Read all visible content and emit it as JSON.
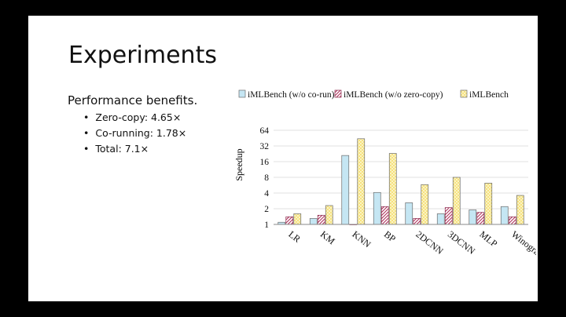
{
  "slide": {
    "title": "Experiments",
    "lead": "Performance benefits.",
    "bullets": [
      "Zero-copy: 4.65×",
      "Co-running: 1.78×",
      "Total: 7.1×"
    ]
  },
  "chart_data": {
    "type": "bar",
    "ylabel": "Speedup",
    "yscale": "log2",
    "ylim": [
      1,
      64
    ],
    "yticks": [
      1,
      2,
      4,
      8,
      16,
      32,
      64
    ],
    "grid": true,
    "legend_position": "top",
    "categories": [
      "LR",
      "KM",
      "KNN",
      "BP",
      "2DCNN",
      "3DCNN",
      "MLP",
      "Winograd"
    ],
    "series": [
      {
        "name": "iMLBench  (w/o  co-run)",
        "color": "#c5e6f3",
        "pattern": "solid",
        "values": [
          1.1,
          1.3,
          21,
          4.1,
          2.6,
          1.6,
          1.9,
          2.2
        ]
      },
      {
        "name": "iMLBench  (w/o zero-copy)",
        "color": "#e7b9c8",
        "pattern": "diagonal",
        "values": [
          1.4,
          1.5,
          1,
          2.2,
          1.3,
          2.1,
          1.7,
          1.4
        ]
      },
      {
        "name": "iMLBench",
        "color": "#f6e27f",
        "pattern": "checker",
        "values": [
          1.6,
          2.3,
          44,
          23,
          5.8,
          8,
          6.2,
          3.6
        ]
      }
    ]
  }
}
